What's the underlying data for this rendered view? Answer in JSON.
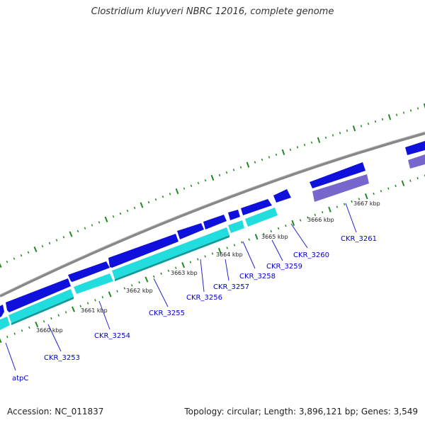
{
  "title": "Clostridium kluyveri NBRC 12016, complete genome",
  "accession": "Accession: NC_011837",
  "summary": "Topology: circular; Length: 3,896,121 bp; Genes: 3,549",
  "colors": {
    "backbone": "#808080",
    "forward_gene": "#1010dd",
    "reverse_gene": "#22dddd",
    "reverse_rna": "#7766cc",
    "ticks": "#228822",
    "gene_label": "#0000cc"
  },
  "axis_ticks": [
    "3660 kbp",
    "3661 kbp",
    "3662 kbp",
    "3663 kbp",
    "3664 kbp",
    "3665 kbp",
    "3666 kbp",
    "3667 kbp"
  ],
  "genes": [
    "atpC",
    "CKR_3253",
    "CKR_3254",
    "CKR_3255",
    "CKR_3256",
    "CKR_3257",
    "CKR_3258",
    "CKR_3259",
    "CKR_3260",
    "CKR_3261"
  ]
}
